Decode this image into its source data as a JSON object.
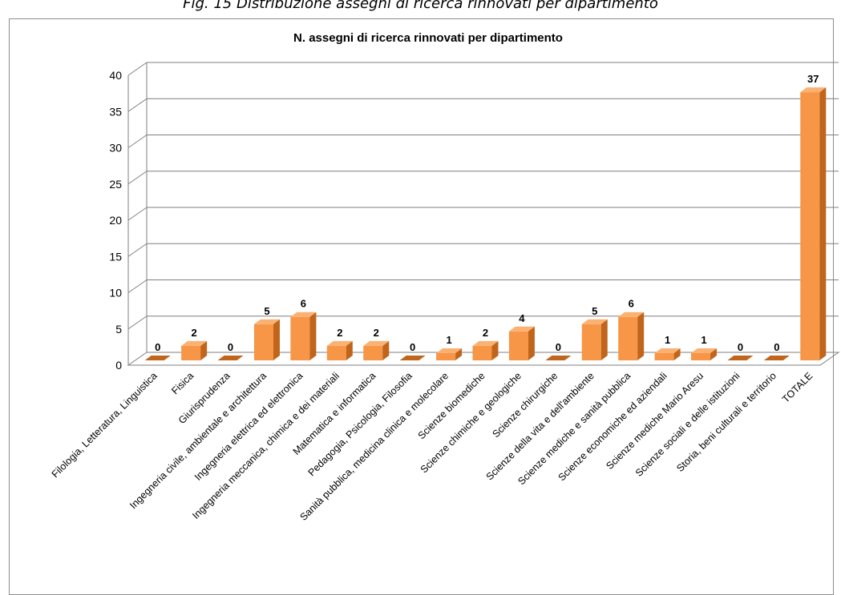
{
  "caption": "Fig. 15 Distribuzione assegni di ricerca rinnovati per dipartimento",
  "chart_data": {
    "type": "bar",
    "title": "N. assegni di ricerca rinnovati per dipartimento",
    "xlabel": "",
    "ylabel": "",
    "ylim": [
      0,
      40
    ],
    "yticks": [
      0,
      5,
      10,
      15,
      20,
      25,
      30,
      35,
      40
    ],
    "grid": true,
    "legend": "none",
    "categories": [
      "Filologia, Letteratura, Linguistica",
      "Fisica",
      "Giurisprudenza",
      "Ingegneria civile, ambientale e architettura",
      "Ingegneria elettrica ed elettronica",
      "Ingegneria meccanica, chimica e dei materiali",
      "Matematica e informatica",
      "Pedagogia, Psicologia, Filosofia",
      "Sanità pubblica, medicina clinica e molecolare",
      "Scienze biomediche",
      "Scienze chimiche e geologiche",
      "Scienze chirurgiche",
      "Scienze della vita e dell'ambiente",
      "Scienze mediche e sanità pubblica",
      "Scienze economiche ed aziendali",
      "Scienze mediche Mario Aresu",
      "Scienze sociali e delle istituzioni",
      "Storia, beni culturali e territorio",
      "TOTALE"
    ],
    "values": [
      0,
      2,
      0,
      5,
      6,
      2,
      2,
      0,
      1,
      2,
      4,
      0,
      5,
      6,
      1,
      1,
      0,
      0,
      37
    ],
    "colors": {
      "bar_front": "#f79646",
      "bar_side": "#c0651b",
      "bar_top": "#fbb171",
      "grid": "#7f7f7f"
    }
  }
}
